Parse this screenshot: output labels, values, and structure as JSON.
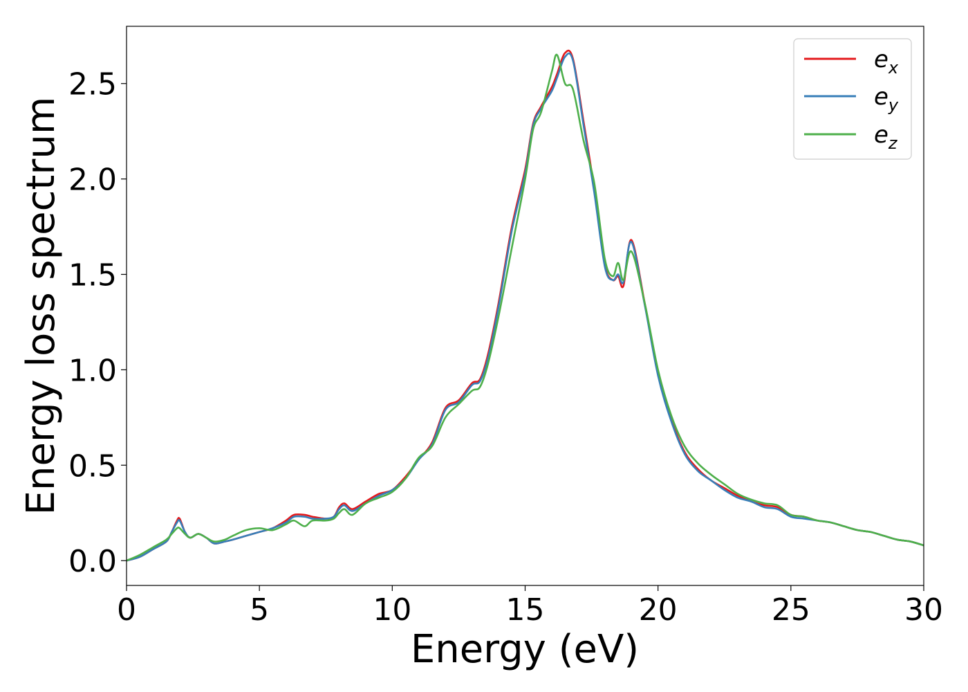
{
  "chart_data": {
    "type": "line",
    "title": "",
    "xlabel": "Energy (eV)",
    "ylabel": "Energy loss spectrum",
    "xlim": [
      0,
      30
    ],
    "ylim": [
      -0.13,
      2.8
    ],
    "xticks": [
      0,
      5,
      10,
      15,
      20,
      25,
      30
    ],
    "xtick_labels": [
      "0",
      "5",
      "10",
      "15",
      "20",
      "25",
      "30"
    ],
    "yticks": [
      0.0,
      0.5,
      1.0,
      1.5,
      2.0,
      2.5
    ],
    "ytick_labels": [
      "0.0",
      "0.5",
      "1.0",
      "1.5",
      "2.0",
      "2.5"
    ],
    "grid": false,
    "legend_position": "top-right",
    "series": [
      {
        "name": "e_x",
        "legend_base": "e",
        "legend_sub": "x",
        "color": "#e41a1c",
        "x": [
          0,
          0.5,
          1,
          1.5,
          1.7,
          1.9,
          2.0,
          2.2,
          2.4,
          2.7,
          3.0,
          3.3,
          3.7,
          4.0,
          4.5,
          5.0,
          5.5,
          6.0,
          6.3,
          6.7,
          7.0,
          7.5,
          7.8,
          8.0,
          8.2,
          8.5,
          9.0,
          9.5,
          10.0,
          10.5,
          11.0,
          11.5,
          12.0,
          12.5,
          13.0,
          13.3,
          13.6,
          14.0,
          14.5,
          15.0,
          15.3,
          15.6,
          16.0,
          16.2,
          16.5,
          16.8,
          17.2,
          17.6,
          18.0,
          18.3,
          18.5,
          18.7,
          19.0,
          19.5,
          20.0,
          20.5,
          21.0,
          21.5,
          22.0,
          22.5,
          23.0,
          23.5,
          24.0,
          24.5,
          25.0,
          25.5,
          26.0,
          26.5,
          27.0,
          27.5,
          28.0,
          28.5,
          29.0,
          29.5,
          30.0
        ],
        "y": [
          0.0,
          0.02,
          0.06,
          0.1,
          0.15,
          0.21,
          0.22,
          0.15,
          0.12,
          0.14,
          0.12,
          0.09,
          0.1,
          0.11,
          0.13,
          0.15,
          0.17,
          0.21,
          0.24,
          0.24,
          0.23,
          0.22,
          0.23,
          0.28,
          0.3,
          0.27,
          0.31,
          0.35,
          0.37,
          0.44,
          0.53,
          0.62,
          0.8,
          0.84,
          0.93,
          0.95,
          1.08,
          1.35,
          1.75,
          2.05,
          2.29,
          2.38,
          2.48,
          2.55,
          2.66,
          2.63,
          2.3,
          1.95,
          1.55,
          1.47,
          1.49,
          1.44,
          1.68,
          1.35,
          0.98,
          0.74,
          0.57,
          0.48,
          0.42,
          0.38,
          0.34,
          0.31,
          0.29,
          0.28,
          0.24,
          0.23,
          0.21,
          0.2,
          0.18,
          0.16,
          0.15,
          0.13,
          0.11,
          0.1,
          0.08
        ]
      },
      {
        "name": "e_y",
        "legend_base": "e",
        "legend_sub": "y",
        "color": "#377eb8",
        "x": [
          0,
          0.5,
          1,
          1.5,
          1.7,
          1.9,
          2.0,
          2.2,
          2.4,
          2.7,
          3.0,
          3.3,
          3.7,
          4.0,
          4.5,
          5.0,
          5.5,
          6.0,
          6.3,
          6.7,
          7.0,
          7.5,
          7.8,
          8.0,
          8.2,
          8.5,
          9.0,
          9.5,
          10.0,
          10.5,
          11.0,
          11.5,
          12.0,
          12.5,
          13.0,
          13.3,
          13.6,
          14.0,
          14.5,
          15.0,
          15.3,
          15.6,
          16.0,
          16.2,
          16.5,
          16.8,
          17.2,
          17.6,
          18.0,
          18.3,
          18.5,
          18.7,
          19.0,
          19.5,
          20.0,
          20.5,
          21.0,
          21.5,
          22.0,
          22.5,
          23.0,
          23.5,
          24.0,
          24.5,
          25.0,
          25.5,
          26.0,
          26.5,
          27.0,
          27.5,
          28.0,
          28.5,
          29.0,
          29.5,
          30.0
        ],
        "y": [
          0.0,
          0.02,
          0.06,
          0.1,
          0.15,
          0.2,
          0.21,
          0.15,
          0.12,
          0.14,
          0.12,
          0.09,
          0.1,
          0.11,
          0.13,
          0.15,
          0.17,
          0.2,
          0.23,
          0.23,
          0.22,
          0.22,
          0.23,
          0.27,
          0.29,
          0.26,
          0.3,
          0.34,
          0.37,
          0.43,
          0.53,
          0.61,
          0.79,
          0.83,
          0.92,
          0.94,
          1.06,
          1.33,
          1.73,
          2.03,
          2.28,
          2.37,
          2.46,
          2.53,
          2.64,
          2.62,
          2.28,
          1.93,
          1.54,
          1.47,
          1.5,
          1.46,
          1.67,
          1.34,
          0.97,
          0.73,
          0.56,
          0.47,
          0.42,
          0.37,
          0.33,
          0.31,
          0.28,
          0.27,
          0.23,
          0.22,
          0.21,
          0.2,
          0.18,
          0.16,
          0.15,
          0.13,
          0.11,
          0.1,
          0.08
        ]
      },
      {
        "name": "e_z",
        "legend_base": "e",
        "legend_sub": "z",
        "color": "#4daf4a",
        "x": [
          0,
          0.5,
          1,
          1.5,
          1.7,
          1.9,
          2.0,
          2.2,
          2.4,
          2.7,
          3.0,
          3.3,
          3.7,
          4.0,
          4.5,
          5.0,
          5.5,
          6.0,
          6.3,
          6.7,
          7.0,
          7.5,
          7.8,
          8.0,
          8.2,
          8.5,
          9.0,
          9.5,
          10.0,
          10.5,
          11.0,
          11.5,
          12.0,
          12.5,
          13.0,
          13.3,
          13.6,
          14.0,
          14.5,
          15.0,
          15.3,
          15.6,
          16.0,
          16.2,
          16.5,
          16.8,
          17.2,
          17.6,
          18.0,
          18.3,
          18.5,
          18.7,
          19.0,
          19.5,
          20.0,
          20.5,
          21.0,
          21.5,
          22.0,
          22.5,
          23.0,
          23.5,
          24.0,
          24.5,
          25.0,
          25.5,
          26.0,
          26.5,
          27.0,
          27.5,
          28.0,
          28.5,
          29.0,
          29.5,
          30.0
        ],
        "y": [
          0.0,
          0.03,
          0.07,
          0.11,
          0.14,
          0.17,
          0.17,
          0.14,
          0.12,
          0.14,
          0.12,
          0.1,
          0.11,
          0.13,
          0.16,
          0.17,
          0.16,
          0.19,
          0.21,
          0.18,
          0.21,
          0.21,
          0.22,
          0.25,
          0.27,
          0.24,
          0.3,
          0.33,
          0.36,
          0.43,
          0.54,
          0.6,
          0.75,
          0.82,
          0.89,
          0.91,
          1.03,
          1.28,
          1.64,
          2.0,
          2.26,
          2.35,
          2.56,
          2.65,
          2.5,
          2.47,
          2.2,
          1.98,
          1.58,
          1.49,
          1.56,
          1.47,
          1.62,
          1.35,
          1.0,
          0.76,
          0.6,
          0.51,
          0.45,
          0.4,
          0.35,
          0.32,
          0.3,
          0.29,
          0.24,
          0.23,
          0.21,
          0.2,
          0.18,
          0.16,
          0.15,
          0.13,
          0.11,
          0.1,
          0.08
        ]
      }
    ]
  }
}
